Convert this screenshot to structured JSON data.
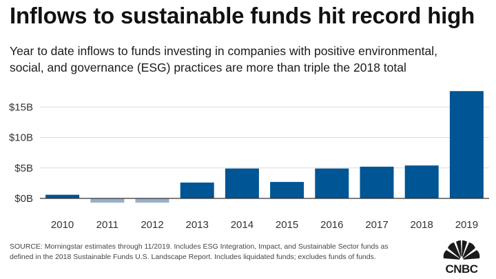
{
  "header": {
    "title": "Inflows to sustainable funds hit record high",
    "subtitle_line1": "Year to date inflows to funds investing in companies with positive environmental,",
    "subtitle_line2": "social, and governance (ESG) practices are more than triple the 2018 total"
  },
  "chart_data": {
    "type": "bar",
    "categories": [
      "2010",
      "2011",
      "2012",
      "2013",
      "2014",
      "2015",
      "2016",
      "2017",
      "2018",
      "2019"
    ],
    "values": [
      0.6,
      -0.7,
      -0.7,
      2.6,
      4.9,
      2.7,
      4.9,
      5.2,
      5.4,
      17.6
    ],
    "ylim": [
      -3.5,
      19.5
    ],
    "yticks": [
      0,
      5,
      10,
      15
    ],
    "ytick_labels": [
      "$0B",
      "$5B",
      "$10B",
      "$15B"
    ],
    "grid": true,
    "colors": {
      "positive": "#005594",
      "negative": "#98afc7",
      "grid": "#d9d9d9",
      "zero_line": "#333333"
    }
  },
  "footer": {
    "source_line1": "SOURCE: Morningstar estimates through 11/2019. Includes ESG Integration, Impact, and Sustainable Sector funds as",
    "source_line2": "defined in the 2018 Sustainable Funds U.S. Landscape Report. Includes liquidated funds; excludes funds of funds.",
    "logo_text": "CNBC"
  }
}
